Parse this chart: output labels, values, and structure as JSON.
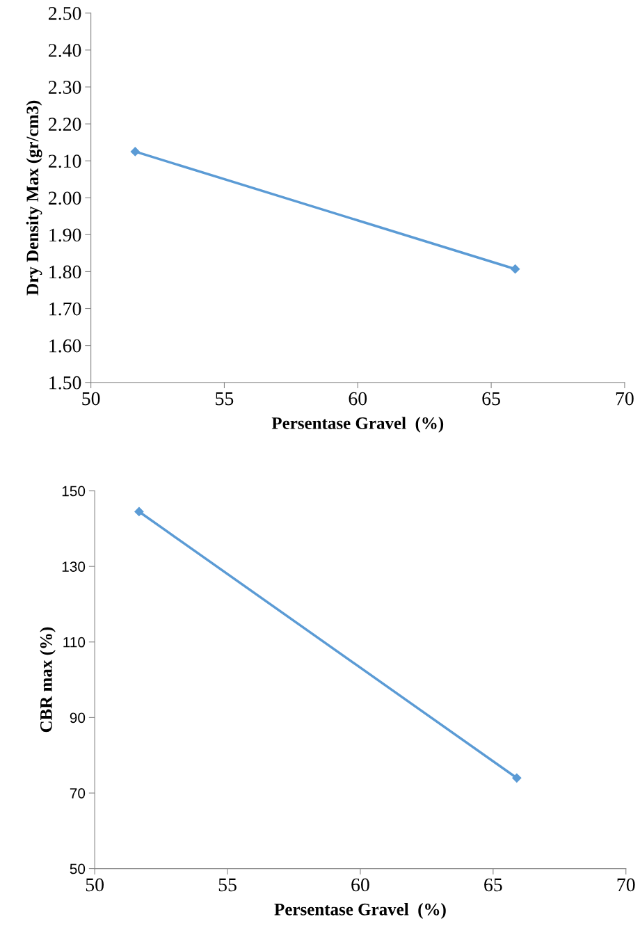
{
  "chart_data": [
    {
      "type": "line",
      "xlabel": "Persentase Gravel  (%)",
      "ylabel": "Dry Density Max (gr/cm3)",
      "x": [
        51.66,
        65.9
      ],
      "series": [
        {
          "color": "#5b9bd5",
          "values": [
            2.125,
            1.807
          ]
        }
      ],
      "marker": "diamond",
      "line_style": "solid",
      "grid": false,
      "xlim": [
        50,
        70
      ],
      "xticks": [
        50,
        55,
        60,
        65,
        70
      ],
      "ylim": [
        1.5,
        2.5
      ],
      "yticks": [
        {
          "value": 1.5,
          "label": "1.50"
        },
        {
          "value": 1.6,
          "label": "1.60"
        },
        {
          "value": 1.7,
          "label": "1.70"
        },
        {
          "value": 1.8,
          "label": "1.80"
        },
        {
          "value": 1.9,
          "label": "1.90"
        },
        {
          "value": 2.0,
          "label": "2.00"
        },
        {
          "value": 2.1,
          "label": "2.10"
        },
        {
          "value": 2.2,
          "label": "2.20"
        },
        {
          "value": 2.3,
          "label": "2.30"
        },
        {
          "value": 2.4,
          "label": "2.40"
        },
        {
          "value": 2.5,
          "label": "2.50"
        }
      ]
    },
    {
      "type": "line",
      "xlabel": "Persentase Gravel  (%)",
      "ylabel": "CBR max (%)",
      "x": [
        51.67,
        65.89
      ],
      "series": [
        {
          "color": "#5b9bd5",
          "values": [
            144.5,
            74.0
          ]
        }
      ],
      "marker": "diamond",
      "line_style": "solid",
      "grid": false,
      "xlim": [
        50,
        70
      ],
      "xticks": [
        50,
        55,
        60,
        65,
        70
      ],
      "ylim": [
        50,
        150
      ],
      "yticks": [
        50,
        70,
        90,
        110,
        130,
        150
      ]
    }
  ]
}
